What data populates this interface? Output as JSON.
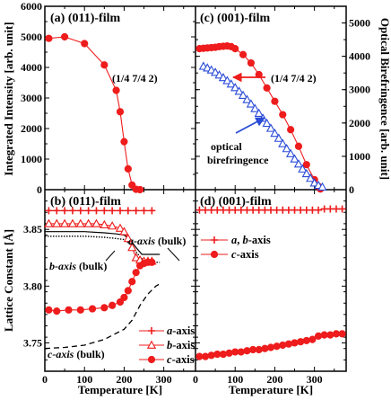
{
  "chart_data": [
    {
      "id": "a",
      "type": "line",
      "panel_label": "(a) (011)-film",
      "annotation": "(1/4 7/4 2)",
      "ylabel": "Integrated Intensity [arb. unit]",
      "xlim": [
        0,
        380
      ],
      "ylim": [
        0,
        6000
      ],
      "x_ticks": [
        0,
        100,
        200,
        300
      ],
      "y_ticks": [
        0,
        1000,
        2000,
        3000,
        4000,
        5000,
        6000
      ],
      "colors": {
        "marker": "#ee1c1c",
        "line": "#ee1c1c"
      },
      "series": [
        {
          "x": [
            10,
            50,
            100,
            150,
            180,
            190,
            200,
            210,
            220,
            230,
            240
          ],
          "y": [
            4950,
            5000,
            4780,
            4080,
            3250,
            2550,
            1570,
            680,
            150,
            10,
            0
          ]
        }
      ]
    },
    {
      "id": "b",
      "type": "line",
      "panel_label": "(b) (011)-film",
      "ylabel": "Lattice Constant [Å]",
      "xlim": [
        0,
        380
      ],
      "ylim": [
        3.725,
        3.885
      ],
      "x_ticks": [
        0,
        100,
        200,
        300
      ],
      "y_ticks": [
        3.75,
        3.8,
        3.85
      ],
      "annotations": [
        "a-axis (bulk)",
        "b-axis (bulk)",
        "c-axis (bulk)"
      ],
      "legend": {
        "position": "bottom-right",
        "entries": [
          "a-axis",
          "b-axis",
          "c-axis"
        ]
      },
      "colors": {
        "marker": "#ee1c1c"
      },
      "series": [
        {
          "name": "a-axis",
          "marker": "plus",
          "x": [
            10,
            30,
            50,
            70,
            90,
            110,
            130,
            150,
            170,
            190,
            210,
            230,
            250,
            270
          ],
          "y": [
            3.8665,
            3.8665,
            3.8665,
            3.8665,
            3.8665,
            3.8665,
            3.8665,
            3.8665,
            3.8665,
            3.8665,
            3.8665,
            3.8665,
            3.8665,
            3.8665
          ]
        },
        {
          "name": "b-axis",
          "marker": "triangle-open",
          "x": [
            10,
            30,
            50,
            70,
            90,
            110,
            130,
            150,
            170,
            190,
            200,
            210,
            220,
            230,
            240,
            250,
            260,
            270
          ],
          "y": [
            3.855,
            3.855,
            3.855,
            3.855,
            3.855,
            3.855,
            3.855,
            3.854,
            3.853,
            3.851,
            3.848,
            3.842,
            3.834,
            3.825,
            3.823,
            3.822,
            3.822,
            3.822
          ]
        },
        {
          "name": "c-axis",
          "marker": "circle-filled",
          "x": [
            10,
            30,
            60,
            90,
            120,
            150,
            170,
            190,
            200,
            210,
            220,
            230,
            240,
            250,
            260,
            270
          ],
          "y": [
            3.779,
            3.778,
            3.779,
            3.779,
            3.78,
            3.781,
            3.783,
            3.786,
            3.79,
            3.796,
            3.804,
            3.812,
            3.818,
            3.82,
            3.821,
            3.821
          ]
        },
        {
          "name": "a-axis (bulk)",
          "style": "solid-black",
          "x": [
            0,
            100,
            150,
            180,
            200,
            215,
            230,
            245,
            255,
            270,
            290
          ],
          "y": [
            3.848,
            3.848,
            3.847,
            3.846,
            3.845,
            3.841,
            3.834,
            3.828,
            3.828,
            3.828,
            3.828
          ]
        },
        {
          "name": "b-axis (bulk)",
          "style": "dotted-black",
          "x": [
            0,
            100,
            150,
            180,
            200,
            215,
            230,
            245,
            255,
            270,
            290
          ],
          "y": [
            3.844,
            3.844,
            3.843,
            3.842,
            3.841,
            3.837,
            3.83,
            3.824,
            3.822,
            3.821,
            3.821
          ]
        },
        {
          "name": "c-axis (bulk)",
          "style": "dashed-black",
          "x": [
            0,
            50,
            100,
            150,
            200,
            220,
            240,
            260,
            280,
            290
          ],
          "y": [
            3.745,
            3.746,
            3.748,
            3.753,
            3.762,
            3.77,
            3.783,
            3.793,
            3.8,
            3.802
          ]
        }
      ]
    },
    {
      "id": "c",
      "type": "line",
      "panel_label": "(c) (001)-film",
      "annotation": "(1/4 7/4 2)",
      "annotation2": "optical birefringence",
      "ylabel": "Optical Birefringence [arb. unit]",
      "xlim": [
        0,
        380
      ],
      "ylim": [
        0,
        5500
      ],
      "x_ticks": [
        0,
        100,
        200,
        300
      ],
      "y_ticks": [
        0,
        1000,
        2000,
        3000,
        4000,
        5000
      ],
      "colors": {
        "marker": "#ee1c1c",
        "open_marker": "#2a4bd7"
      },
      "series": [
        {
          "name": "(1/4 7/4 2)",
          "marker": "circle-filled",
          "x": [
            10,
            20,
            30,
            40,
            50,
            60,
            70,
            80,
            90,
            100,
            120,
            140,
            160,
            180,
            200,
            220,
            240,
            260,
            280,
            300,
            310,
            315
          ],
          "y": [
            4230,
            4240,
            4250,
            4260,
            4270,
            4290,
            4300,
            4310,
            4290,
            4230,
            4050,
            3800,
            3450,
            3050,
            2650,
            2250,
            1800,
            1300,
            750,
            300,
            100,
            20
          ]
        },
        {
          "name": "optical birefringence",
          "marker": "triangle-open",
          "x": [
            20,
            30,
            40,
            50,
            60,
            70,
            80,
            90,
            100,
            110,
            120,
            130,
            140,
            150,
            160,
            170,
            180,
            190,
            200,
            210,
            220,
            230,
            240,
            250,
            260,
            270,
            280,
            290,
            300,
            310,
            320
          ],
          "y": [
            3700,
            3650,
            3590,
            3520,
            3440,
            3360,
            3270,
            3170,
            3060,
            2950,
            2830,
            2700,
            2570,
            2430,
            2290,
            2140,
            1990,
            1840,
            1690,
            1540,
            1380,
            1230,
            1080,
            920,
            770,
            620,
            480,
            340,
            200,
            130,
            80
          ]
        }
      ]
    },
    {
      "id": "d",
      "type": "line",
      "panel_label": "(d) (001)-film",
      "xlabel": "Temperature [K]",
      "xlim": [
        0,
        380
      ],
      "ylim": [
        3.725,
        3.885
      ],
      "x_ticks": [
        0,
        100,
        200,
        300
      ],
      "legend": {
        "position": "top-left",
        "entries": [
          "a, b-axis",
          "c-axis"
        ]
      },
      "colors": {
        "marker": "#ee1c1c"
      },
      "series": [
        {
          "name": "a, b-axis",
          "marker": "plus",
          "x": [
            10,
            25,
            40,
            55,
            70,
            85,
            100,
            115,
            130,
            145,
            160,
            175,
            190,
            205,
            220,
            235,
            250,
            265,
            280,
            295,
            310,
            325,
            340,
            355,
            370
          ],
          "y": [
            3.867,
            3.867,
            3.867,
            3.867,
            3.867,
            3.867,
            3.867,
            3.867,
            3.867,
            3.867,
            3.867,
            3.867,
            3.867,
            3.867,
            3.867,
            3.867,
            3.867,
            3.867,
            3.867,
            3.867,
            3.867,
            3.868,
            3.868,
            3.868,
            3.868
          ]
        },
        {
          "name": "c-axis",
          "marker": "circle-filled",
          "x": [
            10,
            25,
            40,
            55,
            70,
            85,
            100,
            115,
            130,
            145,
            160,
            175,
            190,
            205,
            220,
            235,
            250,
            265,
            280,
            295,
            310,
            325,
            340,
            355,
            370
          ],
          "y": [
            3.738,
            3.738,
            3.739,
            3.74,
            3.74,
            3.741,
            3.742,
            3.742,
            3.743,
            3.744,
            3.744,
            3.745,
            3.746,
            3.747,
            3.748,
            3.749,
            3.75,
            3.751,
            3.752,
            3.753,
            3.756,
            3.757,
            3.757,
            3.758,
            3.758
          ]
        }
      ]
    }
  ],
  "shared": {
    "xlabel": "Temperature [K]",
    "x_ticks": [
      0,
      100,
      200,
      300
    ]
  }
}
